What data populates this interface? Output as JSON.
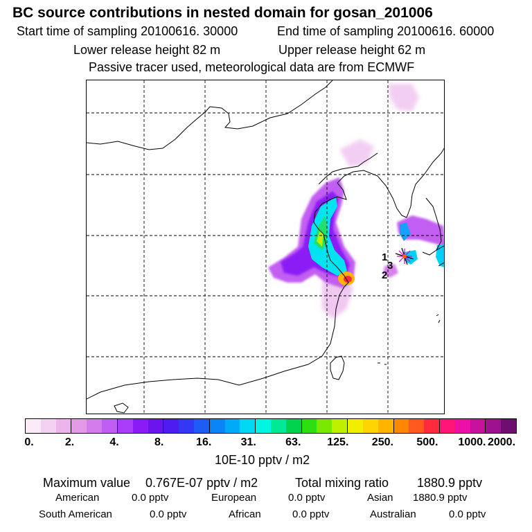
{
  "title": "BC  source contributions in nested domain for gosan_201006",
  "sampling": {
    "start": "Start time of sampling 20100616. 30000",
    "end": "End time of sampling 20100616. 60000"
  },
  "release": {
    "lower": "Lower release height   82 m",
    "upper": "Upper release height   62 m"
  },
  "tracer_note": "Passive tracer used, meteorological data are from ECMWF",
  "map": {
    "receptor_labels": [
      "1",
      "3",
      "2"
    ],
    "receptor_icon": "receptor-star-icon"
  },
  "colorbar": {
    "swatch_colors": [
      "#fbeaf8",
      "#f4d0f2",
      "#edb4ec",
      "#e49ae7",
      "#d57cec",
      "#c05ef3",
      "#a93cf8",
      "#8a1af6",
      "#6c14ee",
      "#4d1cf0",
      "#3238f4",
      "#1e5cf6",
      "#0a84f7",
      "#00aaf8",
      "#00d8f6",
      "#00f6e2",
      "#00ea96",
      "#00d24e",
      "#2cde12",
      "#78ea00",
      "#bef000",
      "#f2ee00",
      "#ffd400",
      "#ffb400",
      "#ff8800",
      "#ff5a1e",
      "#ff2a3c",
      "#ff1478",
      "#ee0ea8",
      "#c8109e",
      "#9c1290",
      "#6e0e6e"
    ],
    "tick_labels": [
      "0.",
      "2.",
      "4.",
      "8.",
      "16.",
      "31.",
      "63.",
      "125.",
      "250.",
      "500.",
      "1000.",
      "2000."
    ],
    "units": "10E-10 pptv / m2"
  },
  "summary": {
    "max_label": "Maximum value",
    "max_value": "0.767E-07 pptv / m2",
    "total_label": "Total mixing ratio",
    "total_value": "1880.9 pptv"
  },
  "contributions": [
    {
      "name": "American",
      "value": "0.0 pptv"
    },
    {
      "name": "European",
      "value": "0.0 pptv"
    },
    {
      "name": "Asian",
      "value": "1880.9 pptv"
    },
    {
      "name": "South American",
      "value": "0.0 pptv"
    },
    {
      "name": "African",
      "value": "0.0 pptv"
    },
    {
      "name": "Australian",
      "value": "0.0 pptv"
    }
  ]
}
